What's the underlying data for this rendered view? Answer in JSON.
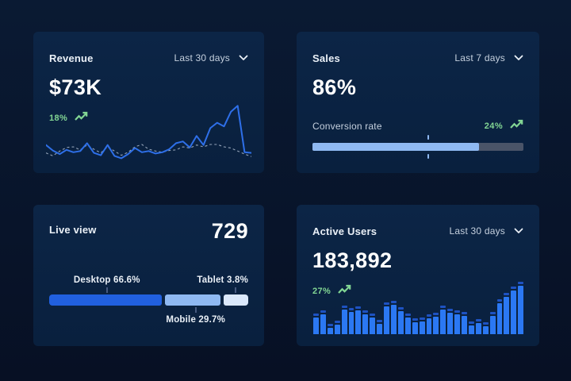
{
  "theme": {
    "bg_top": "#0A1A33",
    "bg_bottom": "#071024",
    "card_bg_top": "#0C2546",
    "card_bg_bottom": "#09203E",
    "title_color": "#EAF0F7",
    "muted_color": "#C5D0DE",
    "green": "#82D694",
    "line_blue": "#2E6FE8",
    "line_dashed": "#94A3B8",
    "progress_fill": "#8FB9F2",
    "progress_track": "#4A5468",
    "marker": "#8FB9F2",
    "desktop_blue": "#2160DF",
    "mobile_blue": "#8FB9F2",
    "tablet_blue": "#DAE8FB",
    "bar_body": "#2B78F3",
    "bar_cap": "#1E52C2",
    "tick_color": "#46597F"
  },
  "icons": {
    "chevron_down": "chevron-down-icon",
    "trend_up": "trend-up-icon"
  },
  "cards": {
    "revenue": {
      "title": "Revenue",
      "range": "Last 30 days",
      "value": "$73K",
      "delta": "18%"
    },
    "sales": {
      "title": "Sales",
      "range": "Last 7 days",
      "value": "86%",
      "metric_label": "Conversion rate",
      "delta": "24%"
    },
    "live_view": {
      "title": "Live view",
      "value": "729",
      "desktop_label": "Desktop 66.6%",
      "mobile_label": "Mobile 29.7%",
      "tablet_label": "Tablet 3.8%"
    },
    "active_users": {
      "title": "Active Users",
      "range": "Last 30 days",
      "value": "183,892",
      "delta": "27%"
    }
  },
  "chart_data": [
    {
      "type": "line",
      "card": "Revenue",
      "title": "Revenue last 30 days",
      "legend": "none",
      "grid": false,
      "ylim": [
        0,
        100
      ],
      "series": [
        {
          "name": "current",
          "values": [
            28,
            19,
            13,
            20,
            16,
            18,
            31,
            15,
            11,
            28,
            10,
            6,
            13,
            23,
            16,
            18,
            14,
            16,
            21,
            31,
            34,
            24,
            43,
            28,
            56,
            65,
            59,
            83,
            93,
            16,
            15
          ]
        },
        {
          "name": "previous",
          "values": [
            15,
            10,
            18,
            24,
            25,
            20,
            28,
            21,
            15,
            25,
            18,
            11,
            16,
            25,
            29,
            21,
            18,
            16,
            19,
            20,
            25,
            23,
            28,
            25,
            29,
            29,
            25,
            23,
            18,
            13,
            9
          ]
        }
      ]
    },
    {
      "type": "bar",
      "card": "Sales",
      "kind": "progress",
      "title": "Conversion rate",
      "value_pct": 86,
      "delta_pct": 24,
      "fill_pct": 79,
      "marker_pct": 55
    },
    {
      "type": "bar",
      "card": "Live view",
      "kind": "stacked-distribution",
      "title": "Visitors by device",
      "total": 729,
      "categories": [
        "Desktop",
        "Mobile",
        "Tablet"
      ],
      "values": [
        66.6,
        29.7,
        3.8
      ],
      "display_widths_pct": [
        56.5,
        28,
        12.5
      ]
    },
    {
      "type": "bar",
      "card": "Active Users",
      "kind": "histogram",
      "title": "Active users last 30 days",
      "ylim": [
        0,
        100
      ],
      "values": [
        39,
        45,
        20,
        26,
        55,
        50,
        53,
        45,
        39,
        27,
        61,
        64,
        52,
        39,
        30,
        32,
        38,
        41,
        55,
        48,
        45,
        42,
        24,
        29,
        23,
        42,
        67,
        79,
        91,
        100
      ]
    }
  ]
}
